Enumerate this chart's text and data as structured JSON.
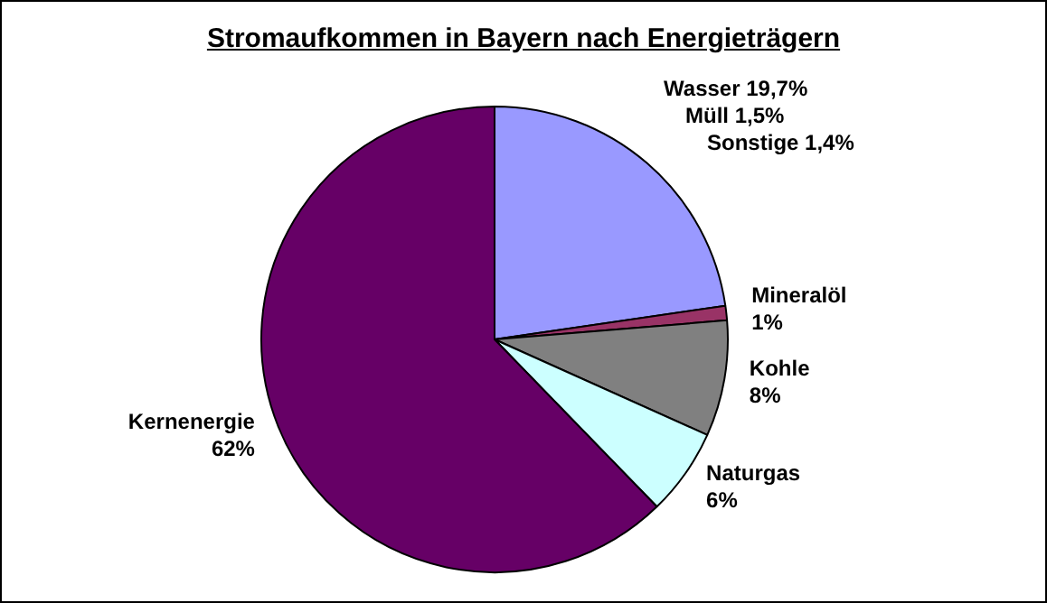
{
  "chart_data": {
    "type": "pie",
    "title": "Stromaufkommen in Bayern nach Energieträgern",
    "categories": [
      "Wasser 19,7%\nMüll 1,5%\nSonstige 1,4%",
      "Mineralöl",
      "Kohle",
      "Naturgas",
      "Kernenergie"
    ],
    "values": [
      22.6,
      1,
      8,
      6,
      62
    ],
    "value_labels": [
      null,
      "1%",
      "8%",
      "6%",
      "62%"
    ],
    "colors": [
      "#9999ff",
      "#993366",
      "#808080",
      "#ccffff",
      "#660066"
    ],
    "legend": false
  }
}
